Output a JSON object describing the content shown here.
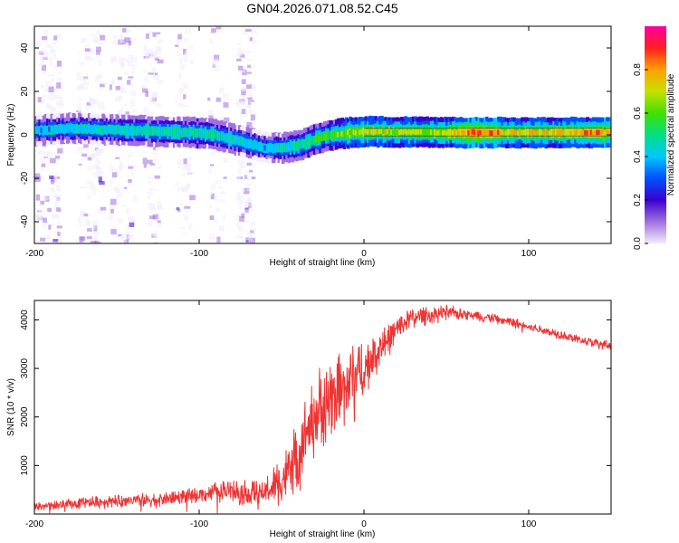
{
  "title": "GN04.2026.071.08.52.C45",
  "colors": {
    "snr_line": "#ee3333",
    "frame": "#000000"
  },
  "chart_data": [
    {
      "type": "heatmap",
      "xlabel": "Height of straight line (km)",
      "ylabel": "Frequency (Hz)",
      "xlim": [
        -200,
        150
      ],
      "ylim": [
        -50,
        50
      ],
      "xticks": [
        -200,
        -100,
        0,
        100
      ],
      "yticks": [
        -40,
        -20,
        0,
        20,
        40
      ],
      "xtick_labels": [
        "-200",
        "-100",
        "0",
        "100"
      ],
      "ytick_labels": [
        "-40",
        "-20",
        "0",
        "20",
        "40"
      ],
      "colorbar": {
        "label": "Normalized spectral amplitude",
        "range": [
          0,
          1
        ],
        "ticks": [
          0.0,
          0.2,
          0.4,
          0.6,
          0.8
        ],
        "tick_labels": [
          "0.0",
          "0.2",
          "0.4",
          "0.6",
          "0.8"
        ]
      },
      "ridge_center_hz": [
        [
          -200,
          2
        ],
        [
          -180,
          3
        ],
        [
          -160,
          2.5
        ],
        [
          -140,
          2
        ],
        [
          -120,
          1.5
        ],
        [
          -100,
          1
        ],
        [
          -90,
          0
        ],
        [
          -80,
          -2
        ],
        [
          -70,
          -4
        ],
        [
          -60,
          -6
        ],
        [
          -50,
          -6
        ],
        [
          -40,
          -5
        ],
        [
          -30,
          -2
        ],
        [
          -20,
          0
        ],
        [
          -10,
          1
        ],
        [
          0,
          1.5
        ],
        [
          50,
          1
        ],
        [
          100,
          1
        ],
        [
          150,
          1
        ]
      ],
      "ridge_peak_amplitude": [
        [
          -200,
          0.45
        ],
        [
          -150,
          0.5
        ],
        [
          -100,
          0.55
        ],
        [
          -60,
          0.45
        ],
        [
          -30,
          0.6
        ],
        [
          0,
          0.8
        ],
        [
          40,
          0.75
        ],
        [
          70,
          1.0
        ],
        [
          90,
          0.8
        ],
        [
          110,
          0.85
        ],
        [
          150,
          0.9
        ]
      ]
    },
    {
      "type": "line",
      "xlabel": "Height of straight line (km)",
      "ylabel": "SNR (10 * v/v)",
      "xlim": [
        -200,
        150
      ],
      "ylim": [
        0,
        4400
      ],
      "xticks": [
        -200,
        -100,
        0,
        100
      ],
      "yticks": [
        1000,
        2000,
        3000,
        4000
      ],
      "xtick_labels": [
        "-200",
        "-100",
        "0",
        "100"
      ],
      "ytick_labels": [
        "1000",
        "2000",
        "3000",
        "4000"
      ],
      "series": [
        {
          "name": "SNR",
          "envelope": [
            [
              -200,
              150
            ],
            [
              -180,
              200
            ],
            [
              -160,
              250
            ],
            [
              -140,
              270
            ],
            [
              -120,
              320
            ],
            [
              -100,
              400
            ],
            [
              -85,
              500
            ],
            [
              -75,
              450
            ],
            [
              -65,
              400
            ],
            [
              -55,
              550
            ],
            [
              -45,
              900
            ],
            [
              -40,
              1200
            ],
            [
              -35,
              1700
            ],
            [
              -30,
              2000
            ],
            [
              -25,
              2200
            ],
            [
              -20,
              2400
            ],
            [
              -15,
              2500
            ],
            [
              -10,
              2700
            ],
            [
              -5,
              2900
            ],
            [
              0,
              3000
            ],
            [
              5,
              3200
            ],
            [
              10,
              3400
            ],
            [
              15,
              3600
            ],
            [
              20,
              3800
            ],
            [
              25,
              3950
            ],
            [
              30,
              4050
            ],
            [
              40,
              4120
            ],
            [
              50,
              4150
            ],
            [
              60,
              4120
            ],
            [
              70,
              4080
            ],
            [
              80,
              4020
            ],
            [
              90,
              3950
            ],
            [
              100,
              3850
            ],
            [
              110,
              3780
            ],
            [
              120,
              3700
            ],
            [
              130,
              3600
            ],
            [
              140,
              3520
            ],
            [
              150,
              3450
            ]
          ],
          "noise_amplitude": [
            [
              -200,
              100
            ],
            [
              -100,
              150
            ],
            [
              -80,
              250
            ],
            [
              -60,
              300
            ],
            [
              -40,
              700
            ],
            [
              -20,
              900
            ],
            [
              0,
              600
            ],
            [
              20,
              250
            ],
            [
              60,
              120
            ],
            [
              100,
              100
            ],
            [
              150,
              100
            ]
          ]
        }
      ]
    }
  ]
}
